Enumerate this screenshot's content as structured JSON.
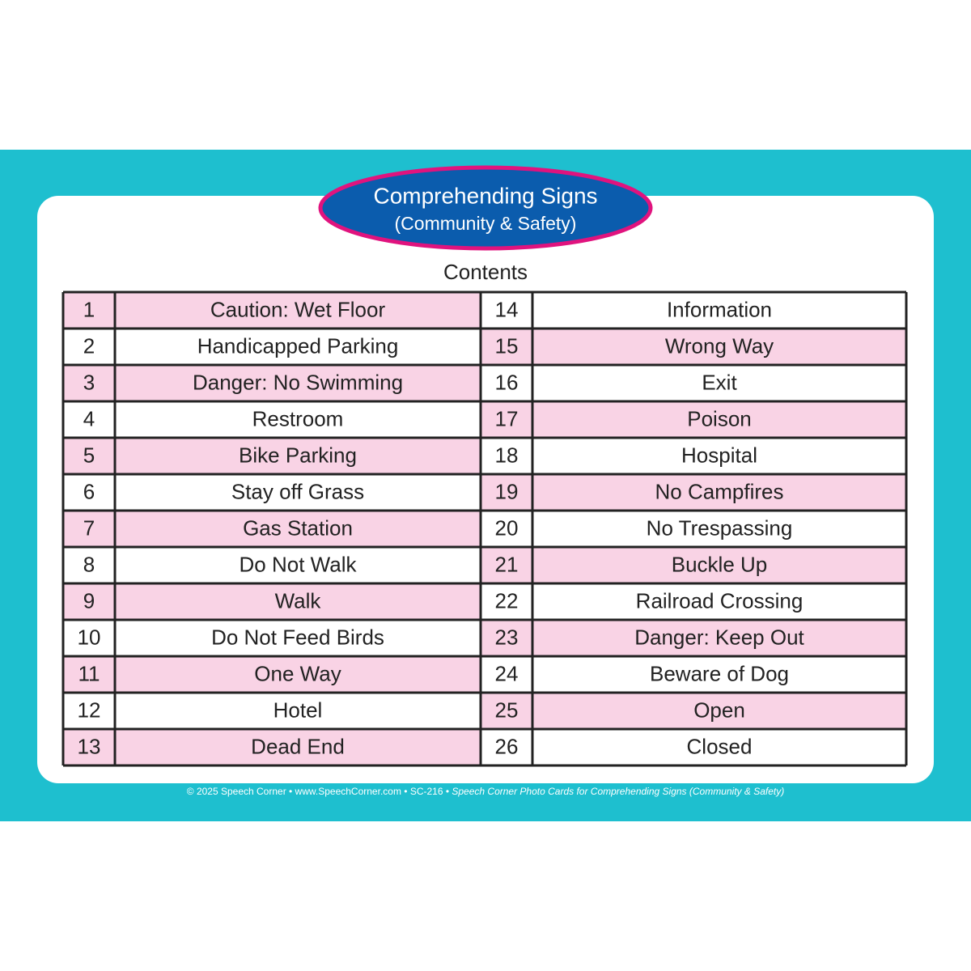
{
  "header": {
    "title": "Comprehending Signs",
    "subtitle": "(Community & Safety)"
  },
  "heading": "Contents",
  "table": {
    "left": [
      [
        "1",
        "Caution: Wet Floor"
      ],
      [
        "2",
        "Handicapped Parking"
      ],
      [
        "3",
        "Danger: No Swimming"
      ],
      [
        "4",
        "Restroom"
      ],
      [
        "5",
        "Bike Parking"
      ],
      [
        "6",
        "Stay off Grass"
      ],
      [
        "7",
        "Gas Station"
      ],
      [
        "8",
        "Do Not Walk"
      ],
      [
        "9",
        "Walk"
      ],
      [
        "10",
        "Do Not Feed Birds"
      ],
      [
        "11",
        "One Way"
      ],
      [
        "12",
        "Hotel"
      ],
      [
        "13",
        "Dead End"
      ]
    ],
    "right": [
      [
        "14",
        "Information"
      ],
      [
        "15",
        "Wrong Way"
      ],
      [
        "16",
        "Exit"
      ],
      [
        "17",
        "Poison"
      ],
      [
        "18",
        "Hospital"
      ],
      [
        "19",
        "No Campfires"
      ],
      [
        "20",
        "No Trespassing"
      ],
      [
        "21",
        "Buckle Up"
      ],
      [
        "22",
        "Railroad Crossing"
      ],
      [
        "23",
        "Danger: Keep Out"
      ],
      [
        "24",
        "Beware of Dog"
      ],
      [
        "25",
        "Open"
      ],
      [
        "26",
        "Closed"
      ]
    ]
  },
  "footer": {
    "plain": "© 2025 Speech Corner • www.SpeechCorner.com • SC-216 • ",
    "italic": "Speech Corner Photo Cards for Comprehending Signs (Community & Safety)"
  }
}
